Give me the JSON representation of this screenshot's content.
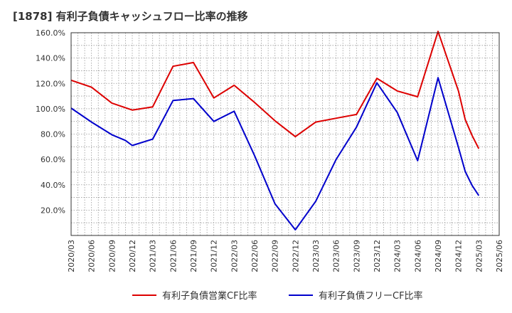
{
  "title": "[1878]  有利子負債キャッシュフロー比率の推移",
  "chart_data": {
    "type": "line",
    "title": "[1878]  有利子負債キャッシュフロー比率の推移",
    "xlabel": "",
    "ylabel": "",
    "x": [
      "2020/03",
      "2020/06",
      "2020/09",
      "2020/12",
      "2021/03",
      "2021/06",
      "2021/09",
      "2021/12",
      "2022/03",
      "2022/06",
      "2022/09",
      "2022/12",
      "2023/03",
      "2023/06",
      "2023/09",
      "2023/12",
      "2024/03",
      "2024/06",
      "2024/09",
      "2024/12",
      "2025/03",
      "2025/06"
    ],
    "ylim": [
      0,
      160
    ],
    "yticks": [
      20,
      40,
      60,
      80,
      100,
      120,
      140,
      160
    ],
    "ytick_labels": [
      "20.0%",
      "40.0%",
      "60.0%",
      "80.0%",
      "100.0%",
      "120.0%",
      "140.0%",
      "160.0%"
    ],
    "grid": true,
    "legend_position": "bottom",
    "series": [
      {
        "name": "有利子負債営業CF比率",
        "color": "#dd0000",
        "points": [
          [
            "2020/03",
            122.5
          ],
          [
            "2020/06",
            117.0
          ],
          [
            "2020/09",
            104.5
          ],
          [
            "2020/12",
            99.0
          ],
          [
            "2021/03",
            101.5
          ],
          [
            "2021/06",
            133.5
          ],
          [
            "2021/09",
            136.5
          ],
          [
            "2021/12",
            108.5
          ],
          [
            "2022/03",
            118.5
          ],
          [
            "2022/06",
            105.0
          ],
          [
            "2022/09",
            90.5
          ],
          [
            "2022/12",
            78.0
          ],
          [
            "2023/03",
            89.5
          ],
          [
            "2023/06",
            92.5
          ],
          [
            "2023/09",
            95.5
          ],
          [
            "2023/12",
            124.0
          ],
          [
            "2024/03",
            114.0
          ],
          [
            "2024/06",
            109.5
          ],
          [
            "2024/09",
            161.0
          ],
          [
            "2024/12",
            114.0
          ],
          [
            "2025/01",
            91.5
          ],
          [
            "2025/02",
            79.0
          ],
          [
            "2025/03",
            68.5
          ]
        ]
      },
      {
        "name": "有利子負債フリーCF比率",
        "color": "#0000cc",
        "points": [
          [
            "2020/03",
            100.5
          ],
          [
            "2020/06",
            89.5
          ],
          [
            "2020/09",
            79.5
          ],
          [
            "2020/11",
            75.0
          ],
          [
            "2020/12",
            71.0
          ],
          [
            "2021/03",
            76.0
          ],
          [
            "2021/06",
            106.5
          ],
          [
            "2021/09",
            108.0
          ],
          [
            "2021/12",
            90.0
          ],
          [
            "2022/03",
            98.0
          ],
          [
            "2022/06",
            63.0
          ],
          [
            "2022/09",
            25.0
          ],
          [
            "2022/12",
            4.5
          ],
          [
            "2023/03",
            27.0
          ],
          [
            "2023/06",
            60.0
          ],
          [
            "2023/09",
            85.5
          ],
          [
            "2023/12",
            120.5
          ],
          [
            "2024/03",
            97.0
          ],
          [
            "2024/06",
            59.0
          ],
          [
            "2024/09",
            124.5
          ],
          [
            "2024/12",
            69.5
          ],
          [
            "2025/01",
            50.5
          ],
          [
            "2025/02",
            39.5
          ],
          [
            "2025/03",
            31.5
          ]
        ]
      }
    ]
  }
}
